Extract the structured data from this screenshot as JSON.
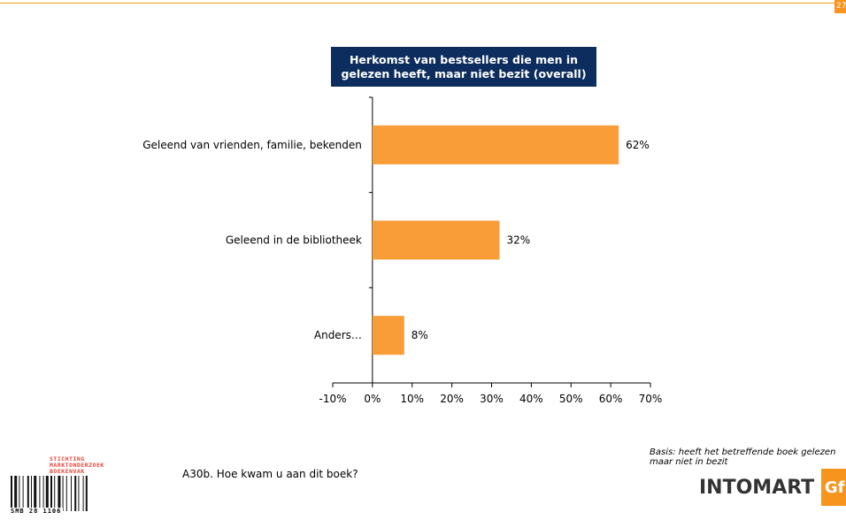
{
  "page": {
    "number": "27"
  },
  "chart_data": {
    "type": "bar",
    "orientation": "horizontal",
    "title": "Herkomst van bestsellers die men in gelezen heeft, maar niet bezit (overall)",
    "categories": [
      "Geleend van vrienden, familie, bekenden",
      "Geleend in de bibliotheek",
      "Anders…"
    ],
    "values": [
      62,
      32,
      8
    ],
    "data_labels": [
      "62%",
      "32%",
      "8%"
    ],
    "xlim": [
      -10,
      70
    ],
    "x_ticks": [
      -10,
      0,
      10,
      20,
      30,
      40,
      50,
      60,
      70
    ],
    "x_tick_labels": [
      "-10%",
      "0%",
      "10%",
      "20%",
      "30%",
      "40%",
      "50%",
      "60%",
      "70%"
    ],
    "bar_color": "#f99d38",
    "grid": false,
    "legend": "none"
  },
  "footer": {
    "question": "A30b. Hoe kwam u aan dit boek?",
    "basis": "Basis: heeft het betreffende boek gelezen maar niet in bezit"
  },
  "logos": {
    "smb_text": [
      "STICHTING",
      "MARKTONDERZOEK",
      "BOEKENVAK"
    ],
    "smb_code": "SMB 28 1106",
    "intomart": "INTOMART",
    "gfk": "GfK"
  },
  "colors": {
    "accent": "#f7941d",
    "title_bg": "#0d2d5e"
  }
}
